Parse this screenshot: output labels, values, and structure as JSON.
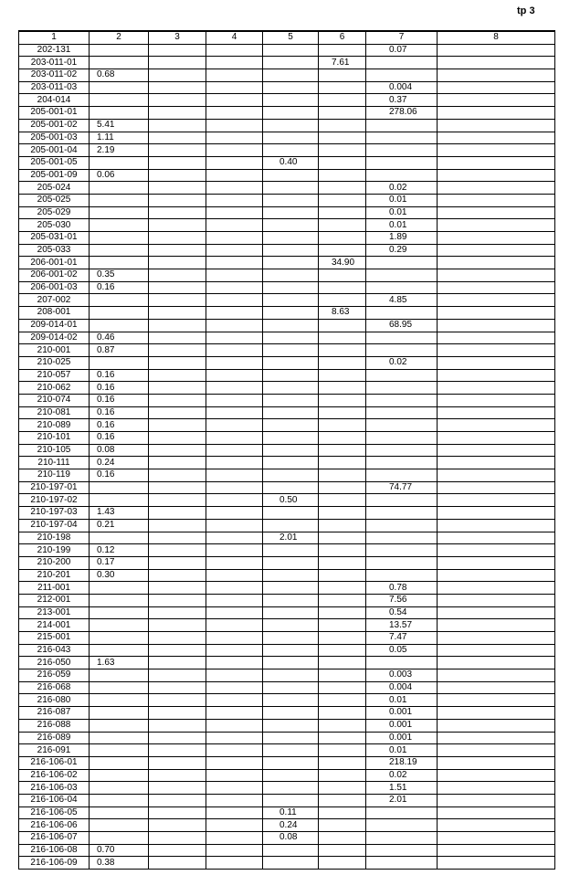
{
  "page_label": "tp 3",
  "table": {
    "headers": [
      "1",
      "2",
      "3",
      "4",
      "5",
      "6",
      "7",
      "8"
    ],
    "rows": [
      [
        "202-131",
        "",
        "",
        "",
        "",
        "",
        "0.07",
        ""
      ],
      [
        "203-011-01",
        "",
        "",
        "",
        "",
        "7.61",
        "",
        ""
      ],
      [
        "203-011-02",
        "0.68",
        "",
        "",
        "",
        "",
        "",
        ""
      ],
      [
        "203-011-03",
        "",
        "",
        "",
        "",
        "",
        "0.004",
        ""
      ],
      [
        "204-014",
        "",
        "",
        "",
        "",
        "",
        "0.37",
        ""
      ],
      [
        "205-001-01",
        "",
        "",
        "",
        "",
        "",
        "278.06",
        ""
      ],
      [
        "205-001-02",
        "5.41",
        "",
        "",
        "",
        "",
        "",
        ""
      ],
      [
        "205-001-03",
        "1.11",
        "",
        "",
        "",
        "",
        "",
        ""
      ],
      [
        "205-001-04",
        "2.19",
        "",
        "",
        "",
        "",
        "",
        ""
      ],
      [
        "205-001-05",
        "",
        "",
        "",
        "0.40",
        "",
        "",
        ""
      ],
      [
        "205-001-09",
        "0.06",
        "",
        "",
        "",
        "",
        "",
        ""
      ],
      [
        "205-024",
        "",
        "",
        "",
        "",
        "",
        "0.02",
        ""
      ],
      [
        "205-025",
        "",
        "",
        "",
        "",
        "",
        "0.01",
        ""
      ],
      [
        "205-029",
        "",
        "",
        "",
        "",
        "",
        "0.01",
        ""
      ],
      [
        "205-030",
        "",
        "",
        "",
        "",
        "",
        "0.01",
        ""
      ],
      [
        "205-031-01",
        "",
        "",
        "",
        "",
        "",
        "1.89",
        ""
      ],
      [
        "205-033",
        "",
        "",
        "",
        "",
        "",
        "0.29",
        ""
      ],
      [
        "206-001-01",
        "",
        "",
        "",
        "",
        "34.90",
        "",
        ""
      ],
      [
        "206-001-02",
        "0.35",
        "",
        "",
        "",
        "",
        "",
        ""
      ],
      [
        "206-001-03",
        "0.16",
        "",
        "",
        "",
        "",
        "",
        ""
      ],
      [
        "207-002",
        "",
        "",
        "",
        "",
        "",
        "4.85",
        ""
      ],
      [
        "208-001",
        "",
        "",
        "",
        "",
        "8.63",
        "",
        ""
      ],
      [
        "209-014-01",
        "",
        "",
        "",
        "",
        "",
        "68.95",
        ""
      ],
      [
        "209-014-02",
        "0.46",
        "",
        "",
        "",
        "",
        "",
        ""
      ],
      [
        "210-001",
        "0.87",
        "",
        "",
        "",
        "",
        "",
        ""
      ],
      [
        "210-025",
        "",
        "",
        "",
        "",
        "",
        "0.02",
        ""
      ],
      [
        "210-057",
        "0.16",
        "",
        "",
        "",
        "",
        "",
        ""
      ],
      [
        "210-062",
        "0.16",
        "",
        "",
        "",
        "",
        "",
        ""
      ],
      [
        "210-074",
        "0.16",
        "",
        "",
        "",
        "",
        "",
        ""
      ],
      [
        "210-081",
        "0.16",
        "",
        "",
        "",
        "",
        "",
        ""
      ],
      [
        "210-089",
        "0.16",
        "",
        "",
        "",
        "",
        "",
        ""
      ],
      [
        "210-101",
        "0.16",
        "",
        "",
        "",
        "",
        "",
        ""
      ],
      [
        "210-105",
        "0.08",
        "",
        "",
        "",
        "",
        "",
        ""
      ],
      [
        "210-111",
        "0.24",
        "",
        "",
        "",
        "",
        "",
        ""
      ],
      [
        "210-119",
        "0.16",
        "",
        "",
        "",
        "",
        "",
        ""
      ],
      [
        "210-197-01",
        "",
        "",
        "",
        "",
        "",
        "74.77",
        ""
      ],
      [
        "210-197-02",
        "",
        "",
        "",
        "0.50",
        "",
        "",
        ""
      ],
      [
        "210-197-03",
        "1.43",
        "",
        "",
        "",
        "",
        "",
        ""
      ],
      [
        "210-197-04",
        "0.21",
        "",
        "",
        "",
        "",
        "",
        ""
      ],
      [
        "210-198",
        "",
        "",
        "",
        "2.01",
        "",
        "",
        ""
      ],
      [
        "210-199",
        "0.12",
        "",
        "",
        "",
        "",
        "",
        ""
      ],
      [
        "210-200",
        "0.17",
        "",
        "",
        "",
        "",
        "",
        ""
      ],
      [
        "210-201",
        "0.30",
        "",
        "",
        "",
        "",
        "",
        ""
      ],
      [
        "211-001",
        "",
        "",
        "",
        "",
        "",
        "0.78",
        ""
      ],
      [
        "212-001",
        "",
        "",
        "",
        "",
        "",
        "7.56",
        ""
      ],
      [
        "213-001",
        "",
        "",
        "",
        "",
        "",
        "0.54",
        ""
      ],
      [
        "214-001",
        "",
        "",
        "",
        "",
        "",
        "13.57",
        ""
      ],
      [
        "215-001",
        "",
        "",
        "",
        "",
        "",
        "7.47",
        ""
      ],
      [
        "216-043",
        "",
        "",
        "",
        "",
        "",
        "0.05",
        ""
      ],
      [
        "216-050",
        "1.63",
        "",
        "",
        "",
        "",
        "",
        ""
      ],
      [
        "216-059",
        "",
        "",
        "",
        "",
        "",
        "0.003",
        ""
      ],
      [
        "216-068",
        "",
        "",
        "",
        "",
        "",
        "0.004",
        ""
      ],
      [
        "216-080",
        "",
        "",
        "",
        "",
        "",
        "0.01",
        ""
      ],
      [
        "216-087",
        "",
        "",
        "",
        "",
        "",
        "0.001",
        ""
      ],
      [
        "216-088",
        "",
        "",
        "",
        "",
        "",
        "0.001",
        ""
      ],
      [
        "216-089",
        "",
        "",
        "",
        "",
        "",
        "0.001",
        ""
      ],
      [
        "216-091",
        "",
        "",
        "",
        "",
        "",
        "0.01",
        ""
      ],
      [
        "216-106-01",
        "",
        "",
        "",
        "",
        "",
        "218.19",
        ""
      ],
      [
        "216-106-02",
        "",
        "",
        "",
        "",
        "",
        "0.02",
        ""
      ],
      [
        "216-106-03",
        "",
        "",
        "",
        "",
        "",
        "1.51",
        ""
      ],
      [
        "216-106-04",
        "",
        "",
        "",
        "",
        "",
        "2.01",
        ""
      ],
      [
        "216-106-05",
        "",
        "",
        "",
        "0.11",
        "",
        "",
        ""
      ],
      [
        "216-106-06",
        "",
        "",
        "",
        "0.24",
        "",
        "",
        ""
      ],
      [
        "216-106-07",
        "",
        "",
        "",
        "0.08",
        "",
        "",
        ""
      ],
      [
        "216-106-08",
        "0.70",
        "",
        "",
        "",
        "",
        "",
        ""
      ],
      [
        "216-106-09",
        "0.38",
        "",
        "",
        "",
        "",
        "",
        ""
      ]
    ]
  }
}
